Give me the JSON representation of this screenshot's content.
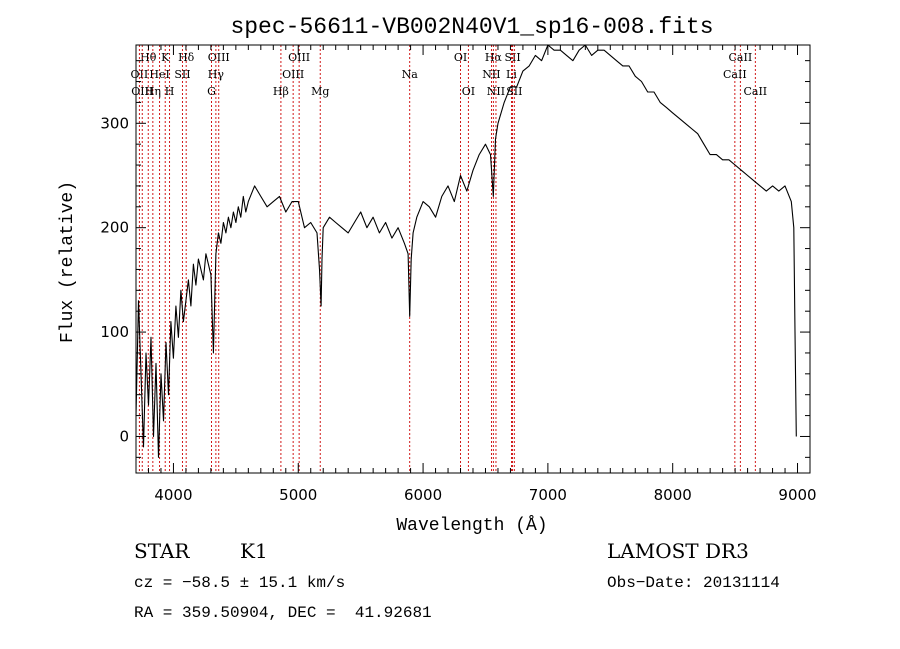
{
  "chart_data": {
    "type": "line",
    "title": "spec-56611-VB002N40V1_sp16-008.fits",
    "xlabel": "Wavelength (Å)",
    "ylabel": "Flux (relative)",
    "xlim": [
      3700,
      9100
    ],
    "ylim": [
      -35,
      375
    ],
    "xticks": [
      4000,
      5000,
      6000,
      7000,
      8000,
      9000
    ],
    "yticks": [
      0,
      100,
      200,
      300
    ],
    "series": [
      {
        "name": "flux",
        "x": [
          3700,
          3720,
          3740,
          3760,
          3780,
          3800,
          3820,
          3840,
          3860,
          3880,
          3900,
          3920,
          3940,
          3960,
          3980,
          4000,
          4020,
          4040,
          4060,
          4080,
          4100,
          4120,
          4140,
          4160,
          4180,
          4200,
          4220,
          4240,
          4260,
          4280,
          4300,
          4320,
          4340,
          4360,
          4380,
          4400,
          4420,
          4440,
          4460,
          4480,
          4500,
          4520,
          4540,
          4560,
          4580,
          4600,
          4650,
          4700,
          4750,
          4800,
          4850,
          4900,
          4950,
          5000,
          5050,
          5100,
          5150,
          5170,
          5183,
          5190,
          5200,
          5250,
          5300,
          5350,
          5400,
          5450,
          5500,
          5550,
          5600,
          5650,
          5700,
          5750,
          5800,
          5850,
          5880,
          5893,
          5905,
          5920,
          5950,
          6000,
          6050,
          6100,
          6150,
          6200,
          6250,
          6300,
          6350,
          6400,
          6450,
          6500,
          6540,
          6563,
          6580,
          6600,
          6650,
          6700,
          6750,
          6800,
          6850,
          6900,
          6950,
          7000,
          7050,
          7100,
          7150,
          7200,
          7250,
          7300,
          7350,
          7400,
          7450,
          7500,
          7550,
          7600,
          7650,
          7700,
          7750,
          7800,
          7850,
          7900,
          7950,
          8000,
          8050,
          8100,
          8150,
          8200,
          8250,
          8300,
          8350,
          8400,
          8450,
          8500,
          8550,
          8600,
          8650,
          8700,
          8750,
          8800,
          8850,
          8900,
          8950,
          8970,
          8980,
          8990
        ],
        "y": [
          20,
          130,
          60,
          -10,
          80,
          30,
          95,
          0,
          70,
          -20,
          60,
          15,
          90,
          40,
          110,
          75,
          125,
          95,
          140,
          110,
          130,
          150,
          125,
          165,
          145,
          170,
          160,
          150,
          175,
          165,
          155,
          80,
          175,
          195,
          185,
          205,
          195,
          210,
          200,
          215,
          205,
          220,
          210,
          230,
          215,
          225,
          240,
          230,
          220,
          225,
          230,
          215,
          225,
          225,
          200,
          205,
          195,
          160,
          125,
          170,
          200,
          210,
          205,
          200,
          195,
          205,
          215,
          200,
          210,
          195,
          205,
          190,
          200,
          185,
          175,
          115,
          170,
          195,
          210,
          225,
          220,
          210,
          230,
          240,
          225,
          250,
          235,
          255,
          270,
          280,
          270,
          230,
          285,
          300,
          320,
          335,
          335,
          350,
          355,
          365,
          360,
          375,
          370,
          370,
          365,
          360,
          370,
          375,
          365,
          370,
          370,
          365,
          360,
          355,
          355,
          345,
          340,
          330,
          330,
          320,
          315,
          310,
          305,
          300,
          295,
          290,
          280,
          270,
          270,
          265,
          265,
          260,
          255,
          250,
          245,
          240,
          235,
          240,
          235,
          240,
          225,
          200,
          100,
          0
        ]
      }
    ],
    "emission_lines": [
      {
        "label": "Hθ",
        "x": 3798,
        "row": 1
      },
      {
        "label": "OII",
        "x": 3727,
        "row": 2
      },
      {
        "label": "OIII",
        "x": 3750,
        "row": 3
      },
      {
        "label": "K",
        "x": 3934,
        "row": 1
      },
      {
        "label": "HeI",
        "x": 3889,
        "row": 2
      },
      {
        "label": "Hη",
        "x": 3835,
        "row": 3
      },
      {
        "label": "Hδ",
        "x": 4102,
        "row": 1
      },
      {
        "label": "SII",
        "x": 4072,
        "row": 2
      },
      {
        "label": "H",
        "x": 3969,
        "row": 3
      },
      {
        "label": "OIII",
        "x": 4363,
        "row": 1
      },
      {
        "label": "Hγ",
        "x": 4340,
        "row": 2
      },
      {
        "label": "G",
        "x": 4305,
        "row": 3
      },
      {
        "label": "OIII",
        "x": 5007,
        "row": 1
      },
      {
        "label": "OIII",
        "x": 4959,
        "row": 2
      },
      {
        "label": "Hβ",
        "x": 4861,
        "row": 3
      },
      {
        "label": "Mg",
        "x": 5176,
        "row": 3
      },
      {
        "label": "Na",
        "x": 5893,
        "row": 2
      },
      {
        "label": "OI",
        "x": 6300,
        "row": 1
      },
      {
        "label": "OI",
        "x": 6363,
        "row": 3
      },
      {
        "label": "Hα",
        "x": 6563,
        "row": 1
      },
      {
        "label": "NII",
        "x": 6548,
        "row": 2
      },
      {
        "label": "NII",
        "x": 6584,
        "row": 3
      },
      {
        "label": "SII",
        "x": 6717,
        "row": 1
      },
      {
        "label": "Li",
        "x": 6708,
        "row": 2
      },
      {
        "label": "SII",
        "x": 6731,
        "row": 3
      },
      {
        "label": "CaII",
        "x": 8542,
        "row": 1
      },
      {
        "label": "CaII",
        "x": 8498,
        "row": 2
      },
      {
        "label": "CaII",
        "x": 8662,
        "row": 3
      }
    ]
  },
  "info": {
    "class": "STAR",
    "subclass": "K1",
    "survey": "LAMOST DR3",
    "cz": "cz = −58.5 ± 15.1 km/s",
    "obs_date": "Obs−Date: 20131114",
    "coords": "RA = 359.50904, DEC =  41.92681"
  }
}
